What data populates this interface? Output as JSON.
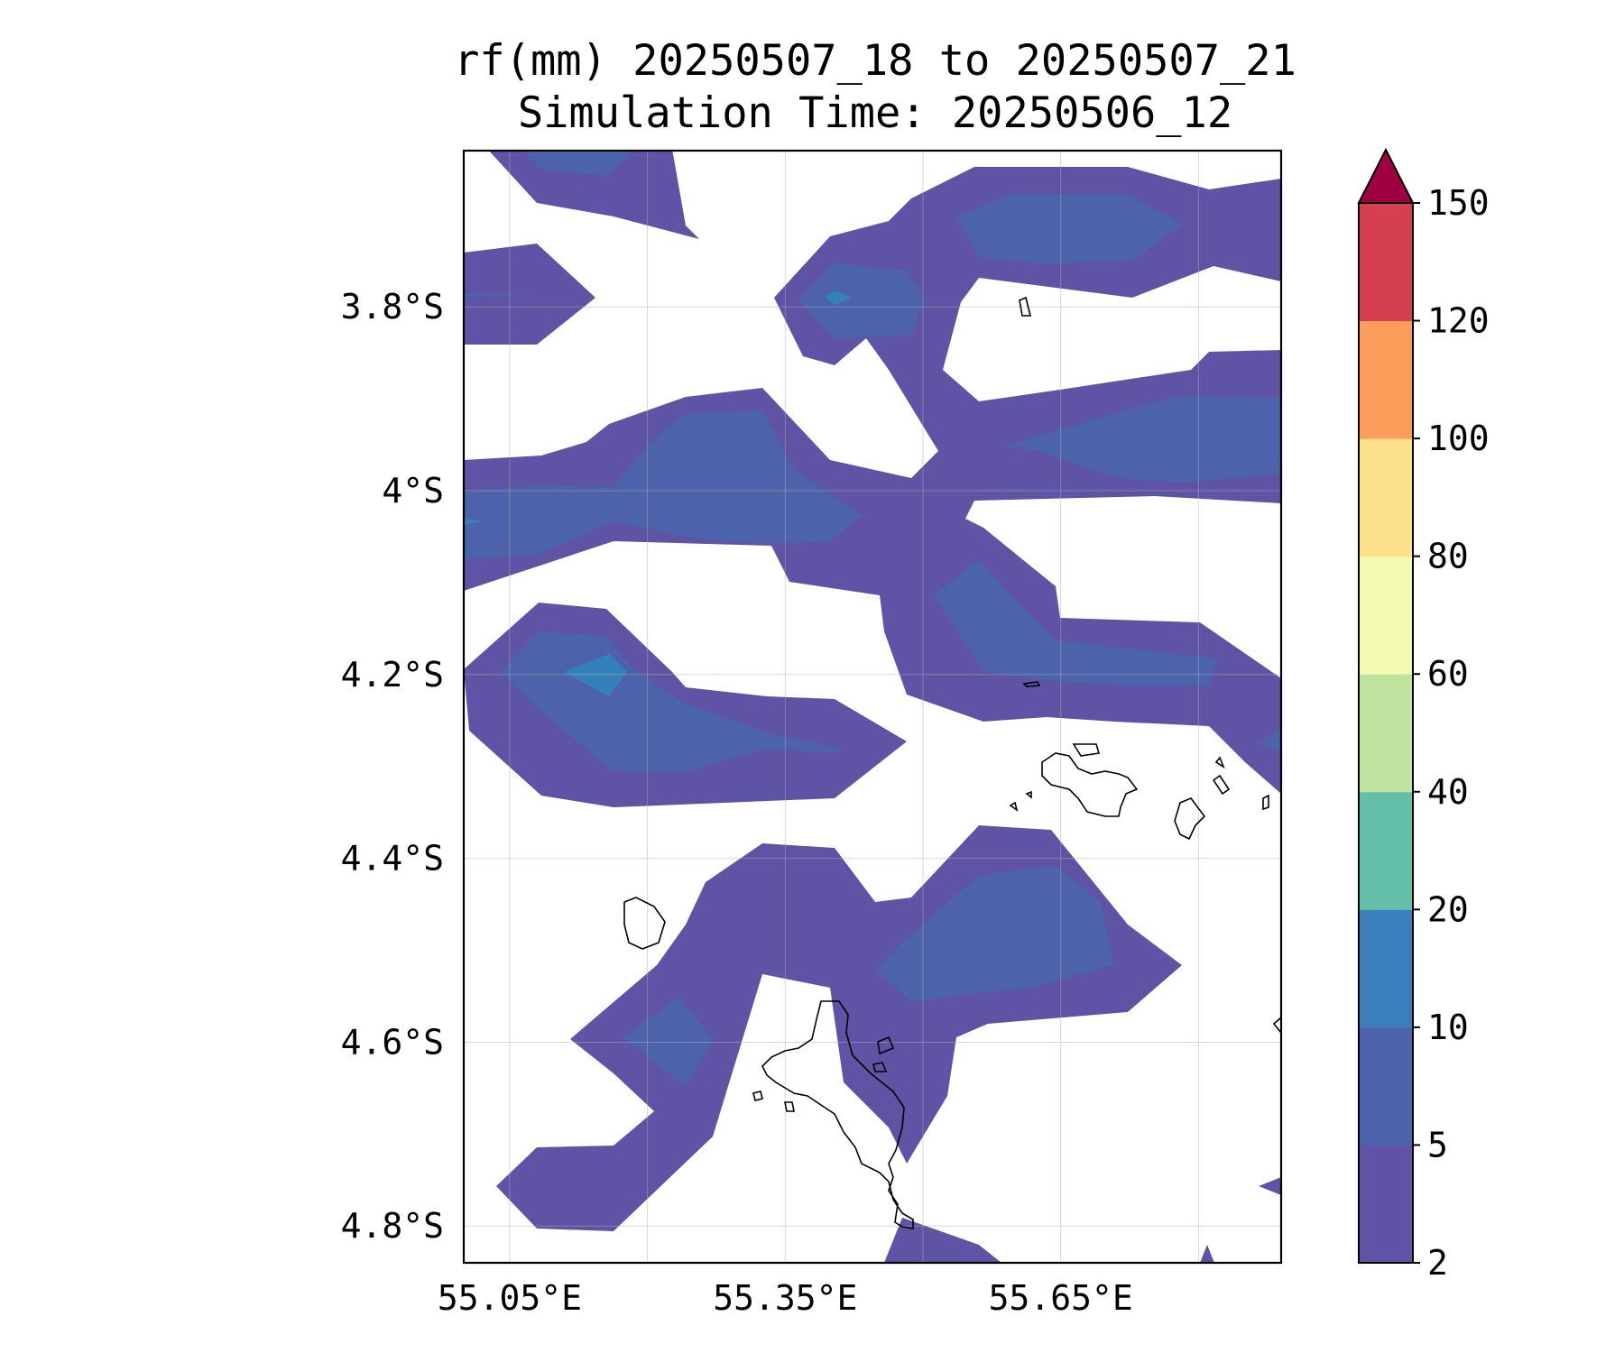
{
  "title_lines": [
    "rf(mm) 20250507_18 to 20250507_21",
    "Simulation Time: 20250506_12"
  ],
  "map": {
    "lon_range": [
      55.0,
      55.89
    ],
    "lat_range": [
      -4.84,
      -3.63
    ],
    "lon_ticks": [
      {
        "value": 55.05,
        "label": "55.05°E"
      },
      {
        "value": 55.35,
        "label": "55.35°E"
      },
      {
        "value": 55.65,
        "label": "55.65°E"
      }
    ],
    "lat_ticks": [
      {
        "value": -3.8,
        "label": "3.8°S"
      },
      {
        "value": -4.0,
        "label": "4°S"
      },
      {
        "value": -4.2,
        "label": "4.2°S"
      },
      {
        "value": -4.4,
        "label": "4.4°S"
      },
      {
        "value": -4.6,
        "label": "4.6°S"
      },
      {
        "value": -4.8,
        "label": "4.8°S"
      }
    ],
    "gridlines": true,
    "colors": {
      "band_2_5": "#5e53a4",
      "band_5_10": "#4c62ab",
      "band_10_20": "#3380bb",
      "coastline": "#000000"
    }
  },
  "colorbar": {
    "extend": "max",
    "levels": [
      2,
      5,
      10,
      20,
      40,
      60,
      80,
      100,
      120,
      150
    ],
    "labels": [
      "2",
      "5",
      "10",
      "20",
      "40",
      "60",
      "80",
      "100",
      "120",
      "150"
    ],
    "colors": [
      "#5e53a4",
      "#4c62ab",
      "#3a7fbc",
      "#64bfa9",
      "#bfe4a0",
      "#f3faaf",
      "#fde08a",
      "#fc9d5b",
      "#d5404e"
    ],
    "extend_color": "#9e0042"
  }
}
